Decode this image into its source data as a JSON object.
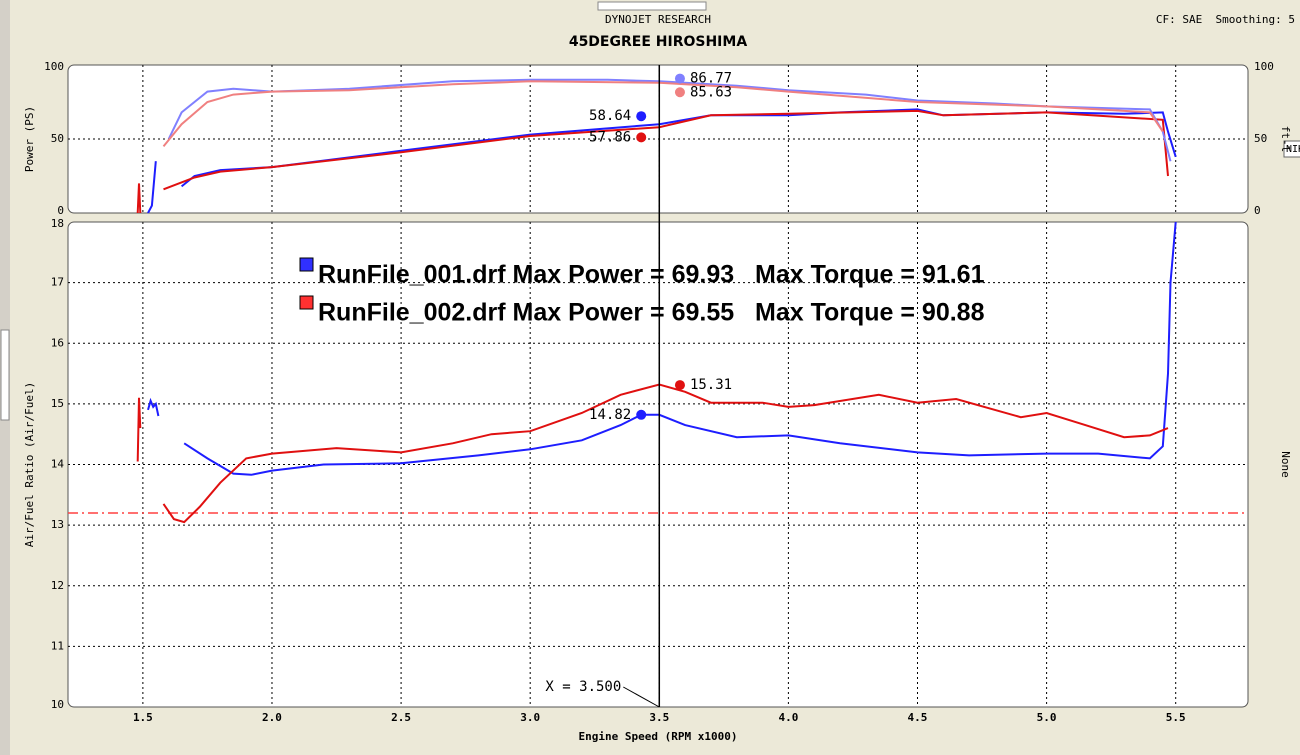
{
  "header": {
    "title": "DYNOJET RESEARCH",
    "subtitle": "45DEGREE HIROSHIMA",
    "info": "CF: SAE  Smoothing: 5"
  },
  "tag": "NIK",
  "chart_data": [
    {
      "type": "line",
      "ylabel": "Power (PS)",
      "y2label": "ft-l",
      "xlim": [
        1.21,
        5.78
      ],
      "ylim": [
        0,
        100
      ],
      "yticks": [
        0,
        50,
        100
      ],
      "y2lim": [
        0,
        100
      ],
      "y2ticks": [
        0,
        50,
        100
      ],
      "grid": true,
      "series": [
        {
          "color": "#1e1eff",
          "x": [
            1.52,
            1.535,
            1.55,
            1.56,
            1.65,
            1.7,
            1.8,
            2.0,
            2.5,
            3.0,
            3.5,
            3.7,
            4.0,
            4.2,
            4.5,
            4.6,
            5.0,
            5.3,
            5.45,
            5.47,
            5.5
          ],
          "values": [
            0,
            5,
            35,
            null,
            18,
            25,
            29,
            31,
            42,
            53,
            60,
            66,
            66,
            68,
            70,
            66,
            68,
            67,
            68,
            55,
            38
          ]
        },
        {
          "color": "#e01010",
          "x": [
            1.48,
            1.485,
            1.49,
            1.5,
            1.58,
            1.7,
            1.8,
            2.0,
            2.5,
            3.0,
            3.5,
            3.7,
            4.0,
            4.5,
            4.6,
            5.0,
            5.45,
            5.47
          ],
          "values": [
            0,
            20,
            0,
            null,
            16,
            24,
            28,
            31,
            41,
            52,
            58,
            66,
            67,
            69,
            66,
            68,
            63,
            25
          ]
        },
        {
          "color": "#8080ff",
          "axis": "y2",
          "x": [
            1.6,
            1.65,
            1.75,
            1.85,
            2.0,
            2.3,
            2.7,
            3.0,
            3.3,
            3.5,
            3.8,
            4.0,
            4.3,
            4.5,
            4.8,
            5.0,
            5.4,
            5.45,
            5.48
          ],
          "values": [
            50,
            68,
            82,
            84,
            82,
            84,
            89,
            90,
            90,
            89,
            86,
            83,
            80,
            76,
            74,
            72,
            70,
            55,
            35
          ]
        },
        {
          "color": "#f08080",
          "axis": "y2",
          "x": [
            1.58,
            1.65,
            1.75,
            1.85,
            2.0,
            2.3,
            2.7,
            3.0,
            3.5,
            3.8,
            4.0,
            4.5,
            5.0,
            5.4,
            5.45
          ],
          "values": [
            45,
            60,
            75,
            80,
            82,
            83,
            87,
            89,
            88,
            85,
            82,
            75,
            72,
            68,
            55
          ]
        }
      ],
      "annotations": [
        {
          "series": 0,
          "x": 3.43,
          "value": 58.64
        },
        {
          "series": 1,
          "x": 3.43,
          "value": 57.86
        },
        {
          "series": 2,
          "x": 3.58,
          "value": 86.77
        },
        {
          "series": 3,
          "x": 3.58,
          "value": 85.63
        }
      ]
    },
    {
      "type": "line",
      "ylabel": "Air/Fuel Ratio (Air/Fuel)",
      "xlabel": "Engine Speed (RPM x1000)",
      "y2label": "None",
      "xlim": [
        1.21,
        5.78
      ],
      "ylim": [
        10,
        18
      ],
      "yticks": [
        10,
        11,
        12,
        13,
        14,
        15,
        16,
        17,
        18
      ],
      "grid": true,
      "xticks": [
        {
          "value": 1.5,
          "label": "1.5"
        },
        {
          "value": 2,
          "label": "2.0"
        },
        {
          "value": 2.5,
          "label": "2.5"
        },
        {
          "value": 3,
          "label": "3.0"
        },
        {
          "value": 3.5,
          "label": "3.5"
        },
        {
          "value": 4,
          "label": "4.0"
        },
        {
          "value": 4.5,
          "label": "4.5"
        },
        {
          "value": 5,
          "label": "5.0"
        },
        {
          "value": 5.5,
          "label": "5.5"
        }
      ],
      "series": [
        {
          "color": "#1e1eff",
          "x": [
            1.52,
            1.53,
            1.54,
            1.55,
            1.56,
            1.58,
            1.66,
            1.75,
            1.85,
            1.92,
            2.0,
            2.2,
            2.5,
            2.8,
            3.0,
            3.2,
            3.35,
            3.43,
            3.5,
            3.6,
            3.8,
            4.0,
            4.2,
            4.5,
            4.7,
            5.0,
            5.2,
            5.4,
            5.45,
            5.47,
            5.48,
            5.5
          ],
          "values": [
            14.9,
            15.05,
            14.95,
            15.0,
            14.8,
            null,
            14.35,
            14.1,
            13.85,
            13.83,
            13.9,
            14.0,
            14.02,
            14.15,
            14.25,
            14.4,
            14.65,
            14.82,
            14.82,
            14.65,
            14.45,
            14.48,
            14.35,
            14.2,
            14.15,
            14.18,
            14.18,
            14.1,
            14.3,
            15.5,
            17.0,
            18.0
          ]
        },
        {
          "color": "#e01010",
          "x": [
            1.48,
            1.485,
            1.49,
            1.5,
            1.58,
            1.62,
            1.66,
            1.72,
            1.8,
            1.9,
            2.0,
            2.25,
            2.5,
            2.7,
            2.85,
            3.0,
            3.2,
            3.35,
            3.5,
            3.6,
            3.7,
            3.9,
            4.0,
            4.1,
            4.35,
            4.5,
            4.65,
            4.9,
            5.0,
            5.15,
            5.3,
            5.4,
            5.47
          ],
          "values": [
            14.05,
            15.1,
            14.6,
            null,
            13.35,
            13.1,
            13.05,
            13.3,
            13.7,
            14.1,
            14.18,
            14.27,
            14.2,
            14.35,
            14.5,
            14.55,
            14.85,
            15.15,
            15.32,
            15.2,
            15.02,
            15.02,
            14.95,
            14.98,
            15.15,
            15.02,
            15.08,
            14.78,
            14.85,
            14.65,
            14.45,
            14.48,
            14.6
          ]
        }
      ],
      "annotations": [
        {
          "series": 0,
          "x": 3.43,
          "value": 14.82
        },
        {
          "series": 1,
          "x": 3.58,
          "value": 15.31
        }
      ],
      "hlines": [
        {
          "value": 13.2,
          "color": "#ff4040"
        }
      ],
      "cursor": {
        "x": 3.5,
        "label": "X = 3.500"
      },
      "legend": [
        {
          "text": "RunFile_001.drf Max Power = 69.93   Max Torque = 91.61",
          "color": "#3030ff"
        },
        {
          "text": "RunFile_002.drf Max Power = 69.55   Max Torque = 90.88",
          "color": "#ff3030"
        }
      ]
    }
  ]
}
